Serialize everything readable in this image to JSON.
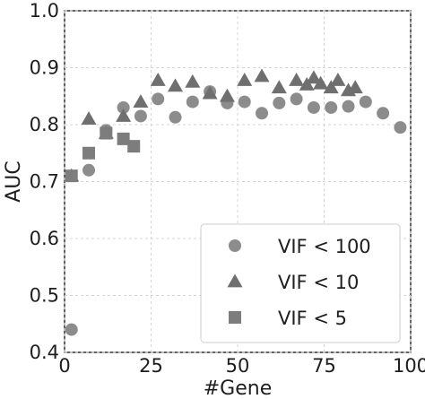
{
  "chart_data": {
    "type": "scatter",
    "title": "",
    "xlabel": "#Gene",
    "ylabel": "AUC",
    "xlim": [
      0,
      100
    ],
    "ylim": [
      0.4,
      1.0
    ],
    "x_ticks": [
      "0",
      "25",
      "50",
      "75",
      "100"
    ],
    "y_ticks": [
      "0.4",
      "0.5",
      "0.6",
      "0.7",
      "0.8",
      "0.9",
      "1.0"
    ],
    "grid": true,
    "legend_position": "lower-right",
    "series": [
      {
        "name": "VIF < 100",
        "marker": "circle",
        "color": "#8c8c8c",
        "points": [
          [
            2,
            0.44
          ],
          [
            7,
            0.72
          ],
          [
            12,
            0.79
          ],
          [
            17,
            0.83
          ],
          [
            22,
            0.815
          ],
          [
            27,
            0.845
          ],
          [
            32,
            0.813
          ],
          [
            37,
            0.84
          ],
          [
            42,
            0.858
          ],
          [
            47,
            0.838
          ],
          [
            52,
            0.84
          ],
          [
            57,
            0.82
          ],
          [
            62,
            0.838
          ],
          [
            67,
            0.845
          ],
          [
            72,
            0.83
          ],
          [
            77,
            0.83
          ],
          [
            82,
            0.832
          ],
          [
            87,
            0.84
          ],
          [
            92,
            0.82
          ],
          [
            97,
            0.795
          ]
        ]
      },
      {
        "name": "VIF < 10",
        "marker": "triangle",
        "color": "#6f6f6f",
        "points": [
          [
            2,
            0.71
          ],
          [
            7,
            0.81
          ],
          [
            12,
            0.785
          ],
          [
            17,
            0.815
          ],
          [
            22,
            0.84
          ],
          [
            27,
            0.878
          ],
          [
            32,
            0.868
          ],
          [
            37,
            0.875
          ],
          [
            42,
            0.855
          ],
          [
            47,
            0.85
          ],
          [
            52,
            0.878
          ],
          [
            57,
            0.885
          ],
          [
            62,
            0.865
          ],
          [
            67,
            0.878
          ],
          [
            70,
            0.87
          ],
          [
            72,
            0.882
          ],
          [
            74,
            0.872
          ],
          [
            77,
            0.865
          ],
          [
            79,
            0.878
          ],
          [
            82,
            0.86
          ],
          [
            84,
            0.865
          ]
        ]
      },
      {
        "name": "VIF < 5",
        "marker": "square",
        "color": "#7d7d7d",
        "points": [
          [
            2,
            0.71
          ],
          [
            7,
            0.75
          ],
          [
            12,
            0.785
          ],
          [
            17,
            0.775
          ],
          [
            20,
            0.762
          ]
        ]
      }
    ]
  }
}
